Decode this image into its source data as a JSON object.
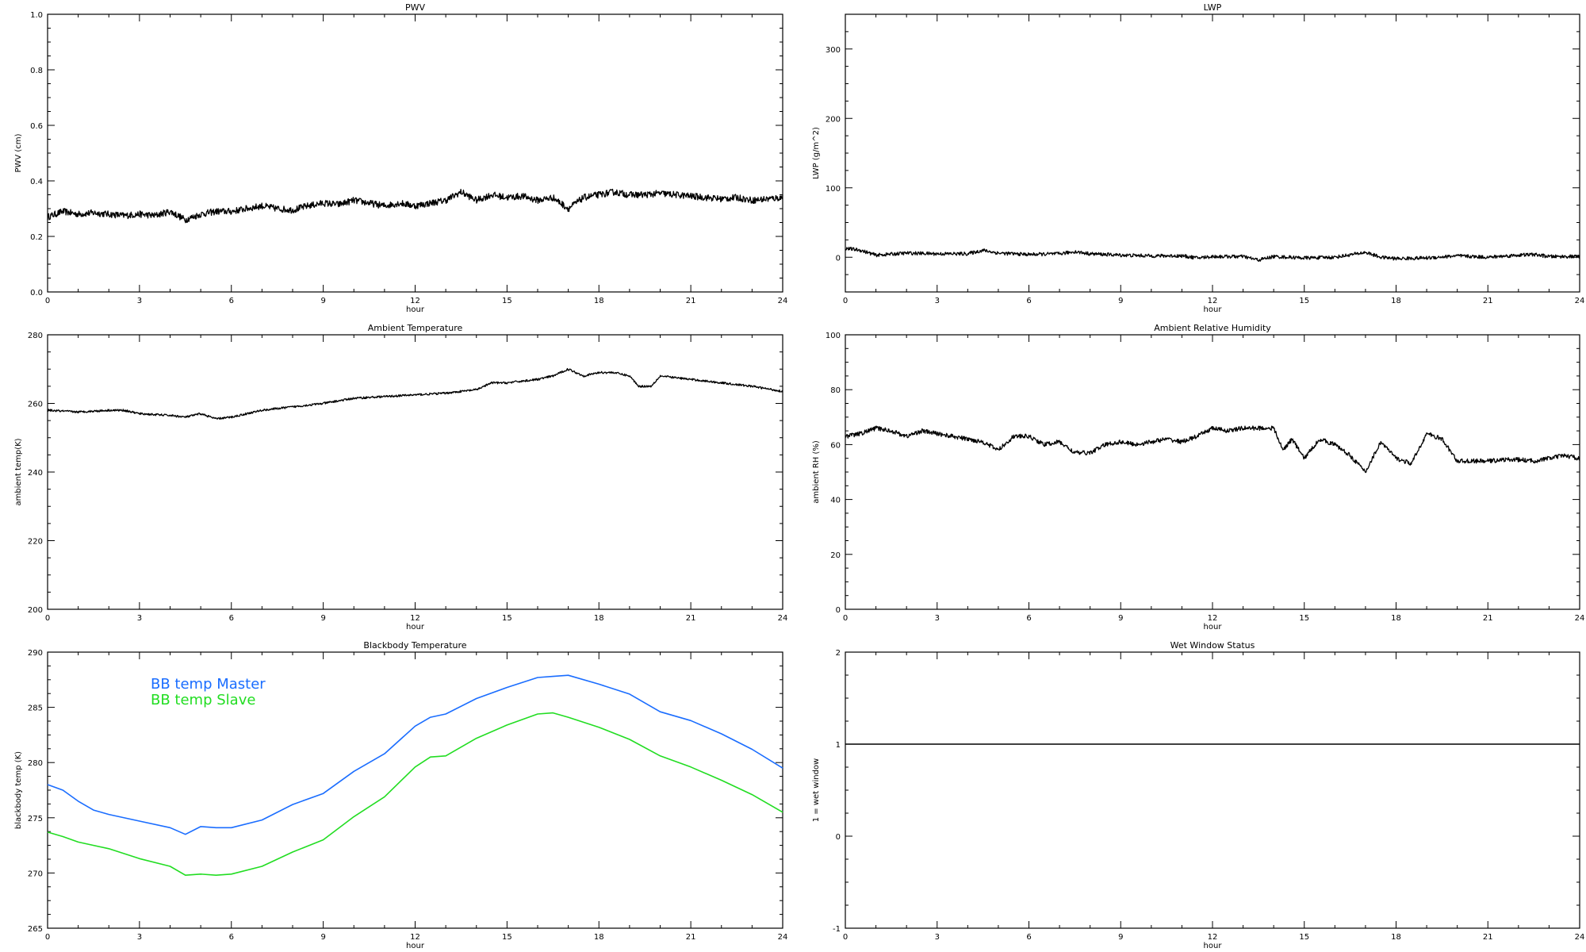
{
  "chart_data": [
    {
      "type": "line",
      "title": "PWV",
      "xlabel": "hour",
      "ylabel": "PWV (cm)",
      "xlim": [
        0,
        24
      ],
      "ylim": [
        0.0,
        1.0
      ],
      "x_ticks": [
        0,
        3,
        6,
        9,
        12,
        15,
        18,
        21,
        24
      ],
      "x_tick_labels": [
        "0",
        "3",
        "6",
        "9",
        "12",
        "15",
        "18",
        "21",
        "24"
      ],
      "y_ticks": [
        0.0,
        0.2,
        0.4,
        0.6,
        0.8,
        1.0
      ],
      "y_tick_labels": [
        "0.0",
        "0.2",
        "0.4",
        "0.6",
        "0.8",
        "1.0"
      ],
      "noise": 0.012,
      "series": [
        {
          "color": "#000000",
          "x": [
            0,
            0.5,
            1,
            1.5,
            2,
            2.5,
            3,
            3.5,
            4,
            4.5,
            5,
            5.5,
            6,
            6.5,
            7,
            7.5,
            8,
            8.5,
            9,
            9.5,
            10,
            10.5,
            11,
            11.5,
            12,
            12.5,
            13,
            13.5,
            14,
            14.5,
            15,
            15.5,
            16,
            16.5,
            17,
            17.5,
            18,
            18.5,
            19,
            19.5,
            20,
            20.5,
            21,
            21.5,
            22,
            22.5,
            23,
            23.5,
            24
          ],
          "y": [
            0.27,
            0.29,
            0.28,
            0.285,
            0.28,
            0.275,
            0.28,
            0.275,
            0.29,
            0.26,
            0.28,
            0.29,
            0.29,
            0.3,
            0.31,
            0.3,
            0.295,
            0.31,
            0.32,
            0.315,
            0.33,
            0.32,
            0.31,
            0.32,
            0.31,
            0.32,
            0.33,
            0.36,
            0.33,
            0.35,
            0.34,
            0.345,
            0.33,
            0.34,
            0.3,
            0.34,
            0.35,
            0.36,
            0.35,
            0.35,
            0.355,
            0.35,
            0.345,
            0.34,
            0.335,
            0.34,
            0.33,
            0.335,
            0.34
          ]
        }
      ]
    },
    {
      "type": "line",
      "title": "LWP",
      "xlabel": "hour",
      "ylabel": "LWP (g/m^2)",
      "xlim": [
        0,
        24
      ],
      "ylim": [
        -50,
        350
      ],
      "x_ticks": [
        0,
        3,
        6,
        9,
        12,
        15,
        18,
        21,
        24
      ],
      "x_tick_labels": [
        "0",
        "3",
        "6",
        "9",
        "12",
        "15",
        "18",
        "21",
        "24"
      ],
      "y_ticks": [
        0,
        100,
        200,
        300
      ],
      "y_tick_labels": [
        "0",
        "100",
        "200",
        "300"
      ],
      "noise": 2.5,
      "series": [
        {
          "color": "#000000",
          "x": [
            0,
            0.5,
            1,
            2,
            3,
            4,
            4.5,
            5,
            6,
            7,
            7.5,
            8,
            9,
            10,
            11,
            11.5,
            12,
            13,
            13.5,
            14,
            15,
            16,
            17,
            17.5,
            18,
            19,
            20,
            21,
            22,
            22.5,
            23,
            24
          ],
          "y": [
            13,
            10,
            3,
            6,
            5,
            5,
            10,
            6,
            4,
            5,
            8,
            5,
            3,
            2,
            2,
            -1,
            1,
            1,
            -4,
            1,
            -1,
            0,
            7,
            0,
            -2,
            -1,
            2,
            0,
            3,
            4,
            1,
            1
          ]
        }
      ]
    },
    {
      "type": "line",
      "title": "Ambient Temperature",
      "xlabel": "hour",
      "ylabel": "ambient temp(K)",
      "xlim": [
        0,
        24
      ],
      "ylim": [
        200,
        280
      ],
      "x_ticks": [
        0,
        3,
        6,
        9,
        12,
        15,
        18,
        21,
        24
      ],
      "x_tick_labels": [
        "0",
        "3",
        "6",
        "9",
        "12",
        "15",
        "18",
        "21",
        "24"
      ],
      "y_ticks": [
        200,
        220,
        240,
        260,
        280
      ],
      "y_tick_labels": [
        "200",
        "220",
        "240",
        "260",
        "280"
      ],
      "noise": 0.3,
      "series": [
        {
          "color": "#000000",
          "x": [
            0,
            1,
            2,
            2.5,
            3,
            4,
            4.5,
            5,
            5.5,
            6,
            7,
            8,
            9,
            10,
            11,
            12,
            13,
            14,
            14.5,
            15,
            16,
            16.5,
            17,
            17.5,
            18,
            18.5,
            19,
            19.3,
            19.7,
            20,
            21,
            22,
            23,
            24
          ],
          "y": [
            258,
            257.5,
            258,
            258,
            257,
            256.5,
            256,
            257,
            255.5,
            256,
            258,
            259,
            260,
            261.5,
            262,
            262.5,
            263,
            264,
            266,
            266,
            267,
            268,
            270,
            268,
            269,
            269,
            268,
            265,
            265,
            268,
            267,
            266,
            265,
            263.5
          ]
        }
      ]
    },
    {
      "type": "line",
      "title": "Ambient Relative Humidity",
      "xlabel": "hour",
      "ylabel": "ambient RH (%)",
      "xlim": [
        0,
        24
      ],
      "ylim": [
        0,
        100
      ],
      "x_ticks": [
        0,
        3,
        6,
        9,
        12,
        15,
        18,
        21,
        24
      ],
      "x_tick_labels": [
        "0",
        "3",
        "6",
        "9",
        "12",
        "15",
        "18",
        "21",
        "24"
      ],
      "y_ticks": [
        0,
        20,
        40,
        60,
        80,
        100
      ],
      "y_tick_labels": [
        "0",
        "20",
        "40",
        "60",
        "80",
        "100"
      ],
      "noise": 0.8,
      "series": [
        {
          "color": "#000000",
          "x": [
            0,
            0.5,
            1,
            1.5,
            2,
            2.5,
            3,
            3.5,
            4,
            4.5,
            5,
            5.5,
            6,
            6.5,
            7,
            7.5,
            8,
            8.5,
            9,
            9.5,
            10,
            10.5,
            11,
            11.5,
            12,
            12.5,
            13,
            13.5,
            14,
            14.3,
            14.6,
            15,
            15.5,
            16,
            16.5,
            17,
            17.5,
            18,
            18.5,
            19,
            19.5,
            20,
            20.5,
            21,
            21.5,
            22,
            22.5,
            23,
            23.5,
            24
          ],
          "y": [
            63,
            64,
            66,
            65,
            63,
            65,
            64,
            63,
            62,
            61,
            58,
            63,
            63,
            60,
            61,
            57,
            57,
            60,
            61,
            60,
            61,
            62,
            61,
            63,
            66,
            65,
            66,
            66,
            66,
            58,
            62,
            55,
            62,
            60,
            56,
            50,
            61,
            55,
            53,
            64,
            62,
            54,
            54,
            54,
            54.5,
            54.5,
            54,
            55,
            56,
            55
          ]
        }
      ]
    },
    {
      "type": "line",
      "title": "Blackbody Temperature",
      "xlabel": "hour",
      "ylabel": "blackbody temp (K)",
      "xlim": [
        0,
        24
      ],
      "ylim": [
        265,
        290
      ],
      "x_ticks": [
        0,
        3,
        6,
        9,
        12,
        15,
        18,
        21,
        24
      ],
      "x_tick_labels": [
        "0",
        "3",
        "6",
        "9",
        "12",
        "15",
        "18",
        "21",
        "24"
      ],
      "y_ticks": [
        265,
        270,
        275,
        280,
        285,
        290
      ],
      "y_tick_labels": [
        "265",
        "270",
        "275",
        "280",
        "285",
        "290"
      ],
      "legend_position": "top-left",
      "noise": 0,
      "series": [
        {
          "name": "BB temp Master",
          "color": "#1a6dff",
          "x": [
            0,
            0.5,
            1,
            1.5,
            2,
            3,
            4,
            4.5,
            5,
            5.5,
            6,
            7,
            8,
            9,
            10,
            11,
            12,
            12.5,
            13,
            14,
            15,
            16,
            16.5,
            17,
            18,
            19,
            20,
            21,
            22,
            23,
            24
          ],
          "y": [
            278,
            277.5,
            276.5,
            275.7,
            275.3,
            274.7,
            274.1,
            273.5,
            274.2,
            274.1,
            274.1,
            274.8,
            276.2,
            277.2,
            279.2,
            280.8,
            283.3,
            284.1,
            284.4,
            285.8,
            286.8,
            287.7,
            287.8,
            287.9,
            287.1,
            286.2,
            284.6,
            283.8,
            282.6,
            281.2,
            279.5
          ]
        },
        {
          "name": "BB temp Slave",
          "color": "#22dd22",
          "x": [
            0,
            0.5,
            1,
            2,
            3,
            4,
            4.5,
            5,
            5.5,
            6,
            7,
            8,
            9,
            10,
            11,
            12,
            12.5,
            13,
            14,
            15,
            16,
            16.5,
            17,
            18,
            19,
            20,
            21,
            22,
            23,
            24
          ],
          "y": [
            273.7,
            273.3,
            272.8,
            272.2,
            271.3,
            270.6,
            269.8,
            269.9,
            269.8,
            269.9,
            270.6,
            271.9,
            273,
            275.1,
            276.9,
            279.6,
            280.5,
            280.6,
            282.2,
            283.4,
            284.4,
            284.5,
            284.1,
            283.2,
            282.1,
            280.6,
            279.6,
            278.4,
            277.1,
            275.5
          ]
        }
      ]
    },
    {
      "type": "line",
      "title": "Wet Window Status",
      "xlabel": "hour",
      "ylabel": "1 = wet window",
      "xlim": [
        0,
        24
      ],
      "ylim": [
        -1,
        2
      ],
      "x_ticks": [
        0,
        3,
        6,
        9,
        12,
        15,
        18,
        21,
        24
      ],
      "x_tick_labels": [
        "0",
        "3",
        "6",
        "9",
        "12",
        "15",
        "18",
        "21",
        "24"
      ],
      "y_ticks": [
        -1,
        0,
        1,
        2
      ],
      "y_tick_labels": [
        "-1",
        "0",
        "1",
        "2"
      ],
      "noise": 0,
      "series": [
        {
          "color": "#000000",
          "x": [
            0,
            24
          ],
          "y": [
            1,
            1
          ]
        }
      ]
    }
  ]
}
